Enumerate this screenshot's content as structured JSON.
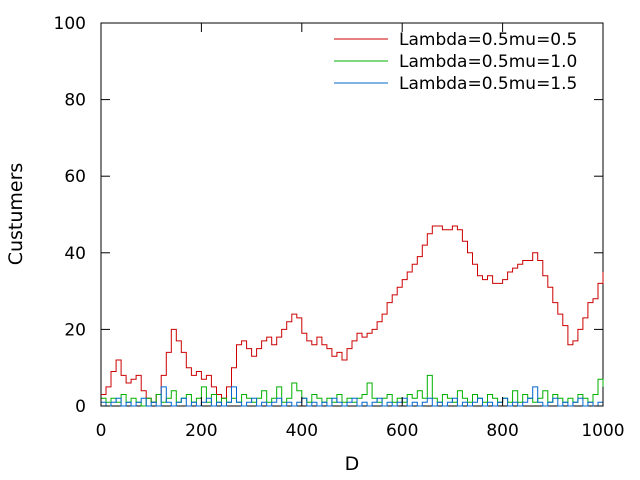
{
  "chart_data": {
    "type": "line",
    "title": "",
    "xlabel": "D",
    "ylabel": "Custumers",
    "xlim": [
      0,
      1000
    ],
    "ylim": [
      0,
      100
    ],
    "xticks": [
      "0",
      "200",
      "400",
      "600",
      "800",
      "1000"
    ],
    "yticks": [
      "0",
      "20",
      "40",
      "60",
      "80",
      "100"
    ],
    "grid": false,
    "legend_position": "top-right",
    "series": [
      {
        "name": "Lambda=0.5mu=0.5",
        "color": "#cc0000",
        "x": [
          0,
          10,
          20,
          30,
          40,
          50,
          60,
          70,
          80,
          90,
          100,
          110,
          120,
          130,
          140,
          150,
          160,
          170,
          180,
          190,
          200,
          210,
          220,
          230,
          240,
          250,
          260,
          270,
          280,
          290,
          300,
          310,
          320,
          330,
          340,
          350,
          360,
          370,
          380,
          390,
          400,
          410,
          420,
          430,
          440,
          450,
          460,
          470,
          480,
          490,
          500,
          510,
          520,
          530,
          540,
          550,
          560,
          570,
          580,
          590,
          600,
          610,
          620,
          630,
          640,
          650,
          660,
          670,
          680,
          690,
          700,
          710,
          720,
          730,
          740,
          750,
          760,
          770,
          780,
          790,
          800,
          810,
          820,
          830,
          840,
          850,
          860,
          870,
          880,
          890,
          900,
          910,
          920,
          930,
          940,
          950,
          960,
          970,
          980,
          990,
          1000
        ],
        "values": [
          3,
          5,
          9,
          12,
          8,
          6,
          7,
          8,
          4,
          2,
          1,
          3,
          8,
          14,
          20,
          17,
          14,
          10,
          8,
          9,
          7,
          8,
          5,
          3,
          2,
          5,
          10,
          16,
          17,
          15,
          13,
          15,
          17,
          18,
          16,
          18,
          20,
          22,
          24,
          23,
          19,
          17,
          16,
          18,
          16,
          15,
          13,
          14,
          12,
          15,
          17,
          19,
          18,
          19,
          20,
          22,
          24,
          27,
          29,
          31,
          33,
          35,
          37,
          39,
          42,
          45,
          47,
          47,
          46,
          46,
          47,
          46,
          43,
          40,
          37,
          34,
          33,
          34,
          32,
          32,
          33,
          35,
          36,
          37,
          38,
          38,
          40,
          38,
          34,
          31,
          27,
          24,
          21,
          16,
          17,
          20,
          23,
          27,
          28,
          32,
          35
        ]
      },
      {
        "name": "Lambda=0.5mu=1.0",
        "color": "#00b000",
        "x": [
          0,
          10,
          20,
          30,
          40,
          50,
          60,
          70,
          80,
          90,
          100,
          110,
          120,
          130,
          140,
          150,
          160,
          170,
          180,
          190,
          200,
          210,
          220,
          230,
          240,
          250,
          260,
          270,
          280,
          290,
          300,
          310,
          320,
          330,
          340,
          350,
          360,
          370,
          380,
          390,
          400,
          410,
          420,
          430,
          440,
          450,
          460,
          470,
          480,
          490,
          500,
          510,
          520,
          530,
          540,
          550,
          560,
          570,
          580,
          590,
          600,
          610,
          620,
          630,
          640,
          650,
          660,
          670,
          680,
          690,
          700,
          710,
          720,
          730,
          740,
          750,
          760,
          770,
          780,
          790,
          800,
          810,
          820,
          830,
          840,
          850,
          860,
          870,
          880,
          890,
          900,
          910,
          920,
          930,
          940,
          950,
          960,
          970,
          980,
          990,
          1000
        ],
        "values": [
          2,
          1,
          2,
          1,
          3,
          1,
          2,
          1,
          0,
          2,
          1,
          3,
          1,
          2,
          4,
          1,
          2,
          3,
          1,
          2,
          5,
          1,
          3,
          1,
          2,
          1,
          2,
          1,
          3,
          2,
          1,
          2,
          4,
          1,
          2,
          5,
          1,
          2,
          6,
          4,
          2,
          1,
          3,
          2,
          1,
          2,
          1,
          3,
          1,
          2,
          1,
          2,
          3,
          6,
          2,
          1,
          2,
          3,
          1,
          2,
          1,
          3,
          2,
          4,
          2,
          8,
          2,
          1,
          3,
          2,
          1,
          4,
          2,
          1,
          3,
          2,
          1,
          3,
          2,
          1,
          2,
          1,
          4,
          1,
          3,
          2,
          1,
          2,
          4,
          1,
          3,
          2,
          1,
          2,
          1,
          3,
          2,
          1,
          3,
          7,
          5
        ]
      },
      {
        "name": "Lambda=0.5mu=1.5",
        "color": "#0066cc",
        "x": [
          0,
          10,
          20,
          30,
          40,
          50,
          60,
          70,
          80,
          90,
          100,
          110,
          120,
          130,
          140,
          150,
          160,
          170,
          180,
          190,
          200,
          210,
          220,
          230,
          240,
          250,
          260,
          270,
          280,
          290,
          300,
          310,
          320,
          330,
          340,
          350,
          360,
          370,
          380,
          390,
          400,
          410,
          420,
          430,
          440,
          450,
          460,
          470,
          480,
          490,
          500,
          510,
          520,
          530,
          540,
          550,
          560,
          570,
          580,
          590,
          600,
          610,
          620,
          630,
          640,
          650,
          660,
          670,
          680,
          690,
          700,
          710,
          720,
          730,
          740,
          750,
          760,
          770,
          780,
          790,
          800,
          810,
          820,
          830,
          840,
          850,
          860,
          870,
          880,
          890,
          900,
          910,
          920,
          930,
          940,
          950,
          960,
          970,
          980,
          990,
          1000
        ],
        "values": [
          1,
          0,
          1,
          2,
          0,
          1,
          0,
          1,
          2,
          0,
          1,
          0,
          5,
          1,
          0,
          1,
          2,
          0,
          1,
          0,
          1,
          2,
          0,
          1,
          0,
          1,
          5,
          1,
          0,
          1,
          2,
          0,
          1,
          0,
          1,
          2,
          0,
          1,
          0,
          1,
          2,
          0,
          1,
          0,
          1,
          0,
          2,
          1,
          0,
          1,
          2,
          0,
          1,
          0,
          1,
          2,
          0,
          1,
          0,
          1,
          2,
          0,
          1,
          0,
          1,
          2,
          0,
          1,
          0,
          1,
          2,
          0,
          1,
          0,
          1,
          2,
          0,
          1,
          0,
          1,
          2,
          0,
          1,
          0,
          1,
          2,
          5,
          1,
          0,
          1,
          2,
          0,
          1,
          0,
          1,
          2,
          0,
          1,
          0,
          1,
          2
        ]
      }
    ]
  }
}
